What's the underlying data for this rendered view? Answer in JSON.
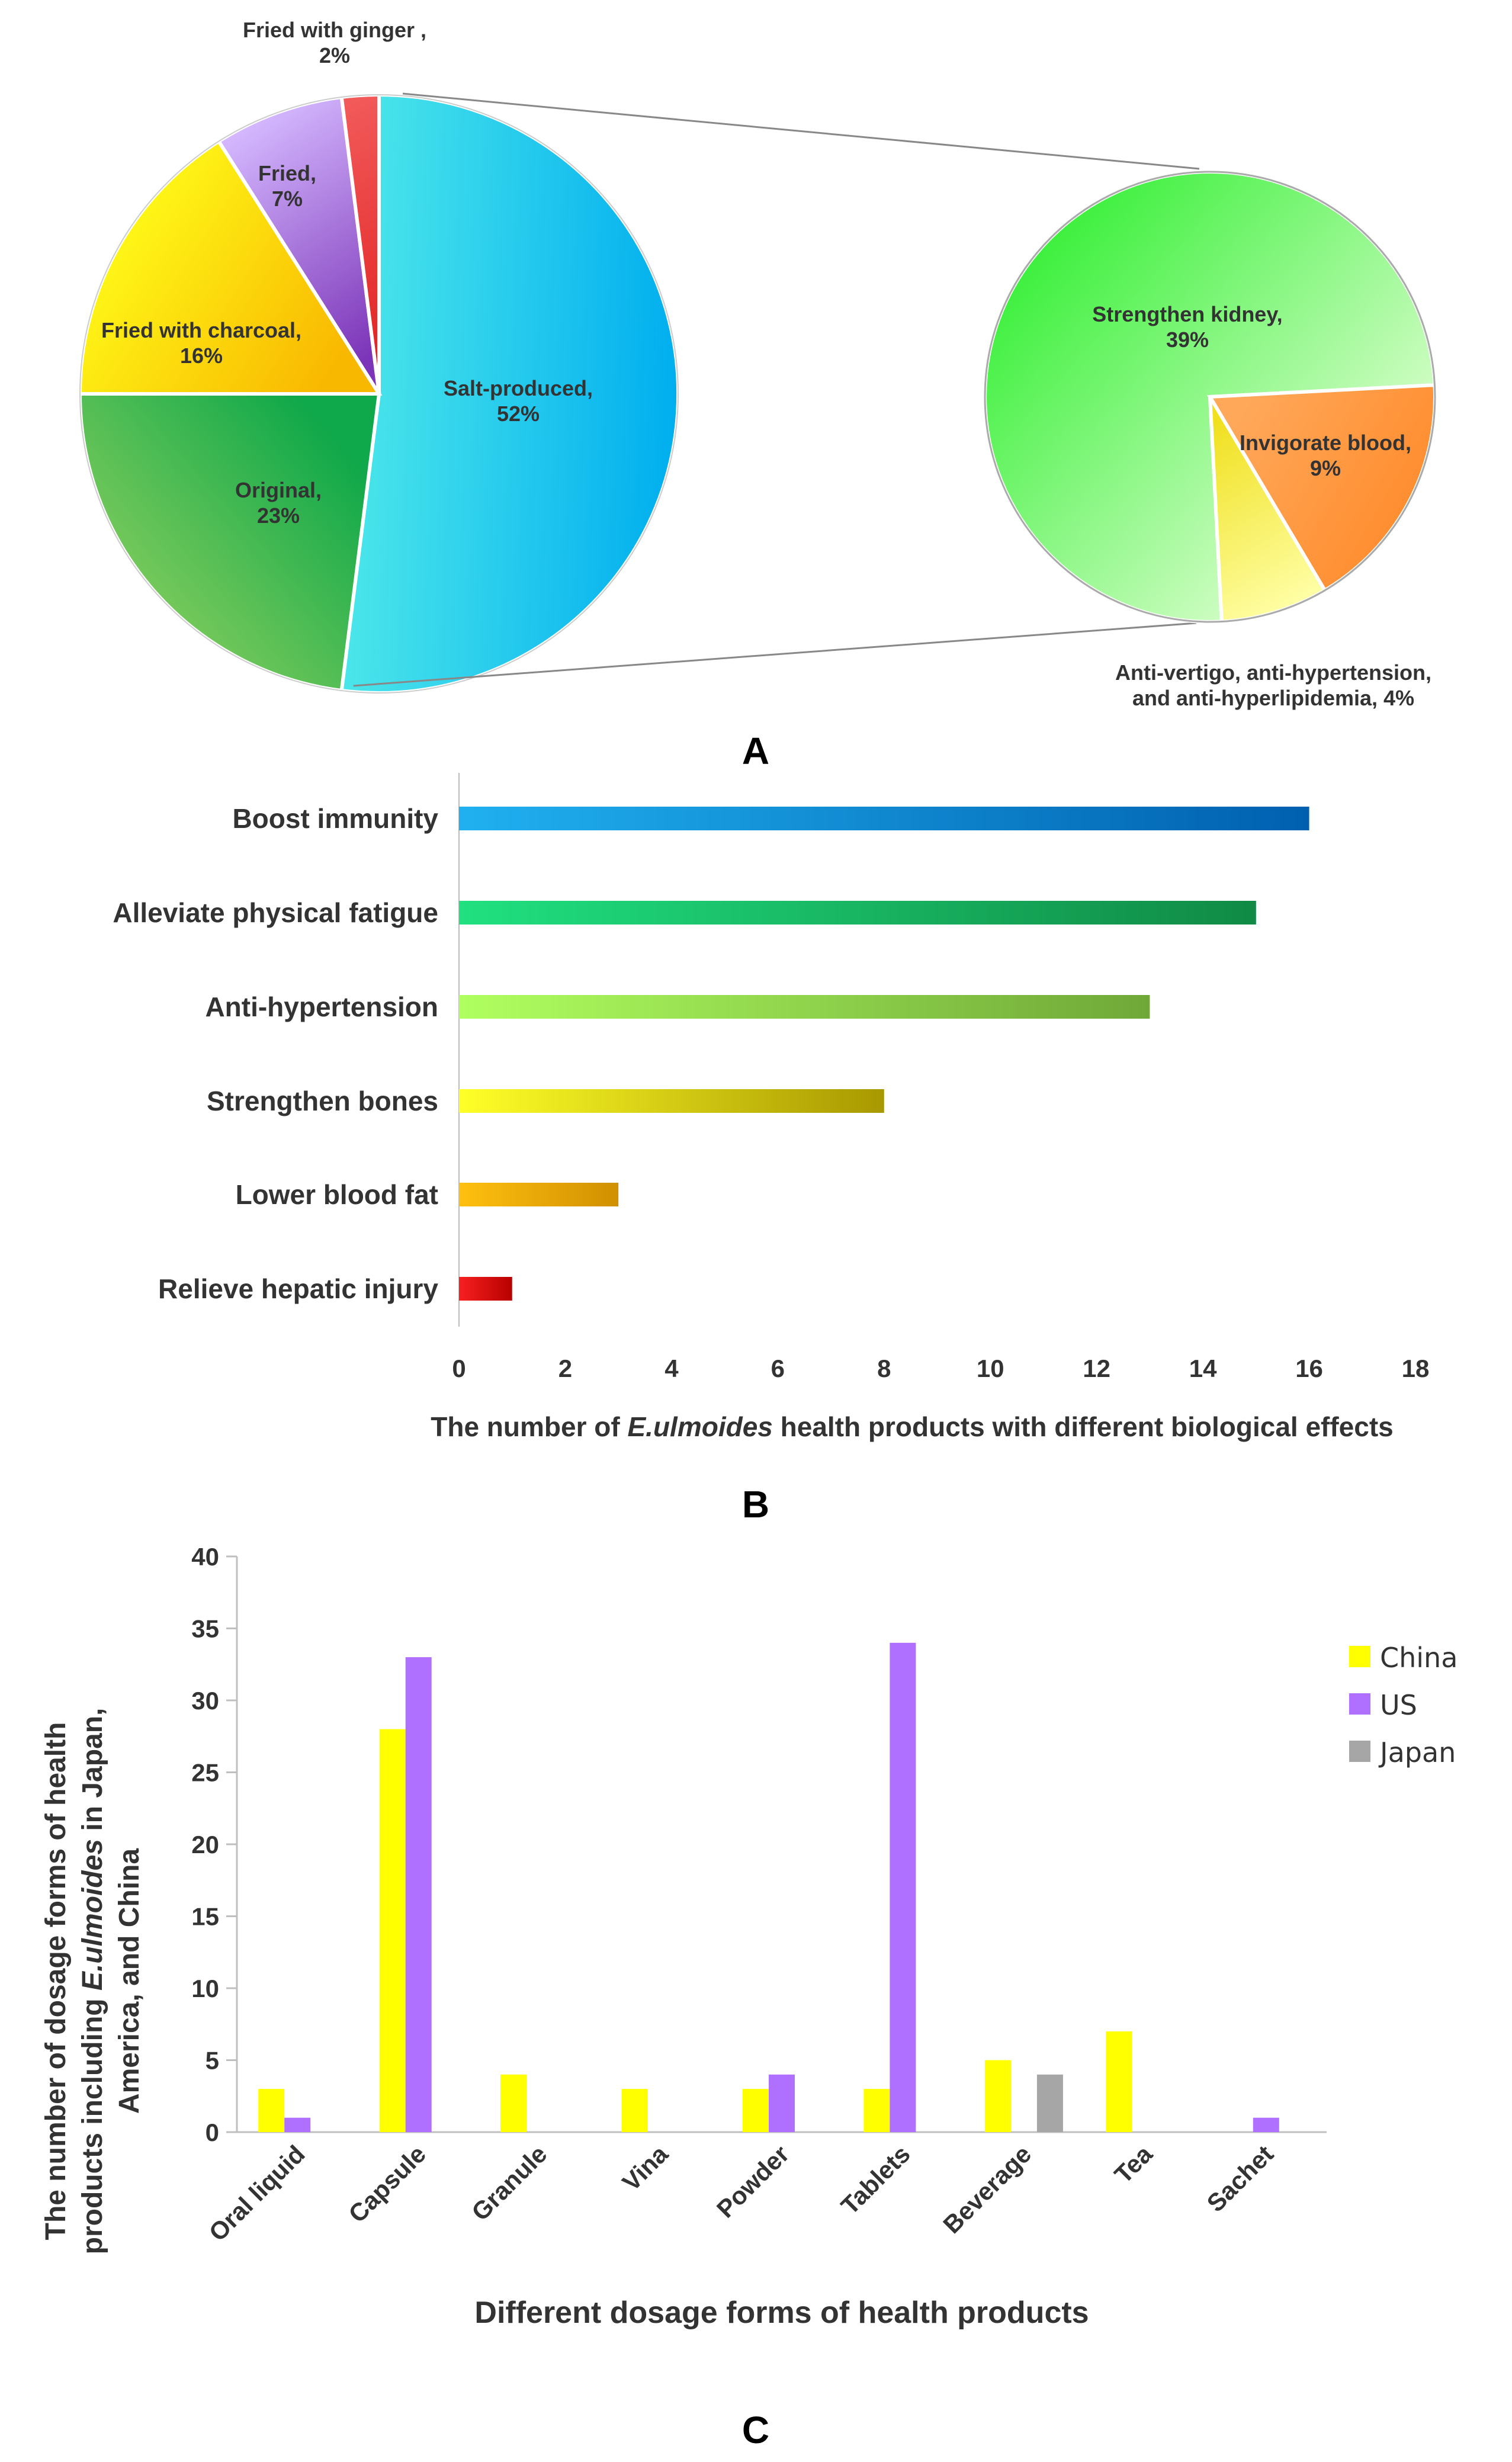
{
  "panels": {
    "a": "A",
    "b": "B",
    "c": "C"
  },
  "chart_data": [
    {
      "type": "pie",
      "id": "main-pie",
      "slices": [
        {
          "label": "Salt-produced",
          "value": 52,
          "text": "52%",
          "colors": [
            "#00AEEF",
            "#4EE8EA"
          ]
        },
        {
          "label": "Original",
          "value": 23,
          "text": "23%",
          "colors": [
            "#8DD05E",
            "#0FA84A"
          ]
        },
        {
          "label": "Fried with charcoal",
          "value": 16,
          "text": "16%",
          "colors": [
            "#FFFF1A",
            "#F9B800"
          ]
        },
        {
          "label": "Fried",
          "value": 7,
          "text": "7%",
          "colors": [
            "#D5B9FF",
            "#7C35B8"
          ]
        },
        {
          "label": "Fried with ginger ,",
          "value": 2,
          "text": "2%",
          "colors": [
            "#F25A5A",
            "#E02020"
          ]
        }
      ]
    },
    {
      "type": "pie",
      "id": "detail-pie",
      "parent_slice": "Salt-produced",
      "slices": [
        {
          "label": "Strengthen kidney",
          "value": 39,
          "text": "39%",
          "colors": [
            "#3EF03E",
            "#E6FFD8"
          ]
        },
        {
          "label": "Invigorate blood",
          "value": 9,
          "text": "9%",
          "colors": [
            "#FF8A2A",
            "#FFA85A"
          ]
        },
        {
          "label": "Anti-vertigo, anti-hypertension, and anti-hyperlipidemia",
          "value": 4,
          "text": "4%",
          "colors": [
            "#FFFFA8",
            "#F0E020"
          ]
        }
      ]
    },
    {
      "type": "bar",
      "orientation": "horizontal",
      "id": "effects-bar",
      "categories": [
        "Boost immunity",
        "Alleviate physical fatigue",
        "Anti-hypertension",
        "Strengthen bones",
        "Lower blood fat",
        "Relieve hepatic injury"
      ],
      "values": [
        16,
        15,
        13,
        8,
        3,
        1
      ],
      "colors": [
        [
          "#20B0F0",
          "#0060B0"
        ],
        [
          "#20E080",
          "#108A45"
        ],
        [
          "#B0FF60",
          "#70A838"
        ],
        [
          "#FFFF28",
          "#A89800"
        ],
        [
          "#FFC010",
          "#D09000"
        ],
        [
          "#F82020",
          "#B80000"
        ]
      ],
      "xlim": [
        0,
        18
      ],
      "xticks": [
        0,
        2,
        4,
        6,
        8,
        10,
        12,
        14,
        16,
        18
      ],
      "xlabel_prefix": "The number of ",
      "xlabel_italic": "E.ulmoides",
      "xlabel_suffix": " health products with different biological effects"
    },
    {
      "type": "bar",
      "orientation": "vertical",
      "id": "dosage-bar",
      "categories": [
        "Oral liquid",
        "Capsule",
        "Granule",
        "Vina",
        "Powder",
        "Tablets",
        "Beverage",
        "Tea",
        "Sachet"
      ],
      "series": [
        {
          "name": "China",
          "color": "#FFFF00",
          "values": [
            3,
            28,
            4,
            3,
            3,
            3,
            5,
            7,
            0
          ]
        },
        {
          "name": "US",
          "color": "#B070FF",
          "values": [
            1,
            33,
            0,
            0,
            4,
            34,
            0,
            0,
            1
          ]
        },
        {
          "name": "Japan",
          "color": "#A6A6A6",
          "values": [
            0,
            0,
            0,
            0,
            0,
            0,
            4,
            0,
            0
          ]
        }
      ],
      "ylim": [
        0,
        40
      ],
      "yticks": [
        0,
        5,
        10,
        15,
        20,
        25,
        30,
        35,
        40
      ],
      "ylabel_line1": "The number of dosage forms of health",
      "ylabel_line2_prefix": "products including ",
      "ylabel_line2_italic": "E.ulmoides",
      "ylabel_line2_suffix": " in Japan,",
      "ylabel_line3": "America, and China",
      "xlabel": "Different dosage forms of health products"
    }
  ]
}
